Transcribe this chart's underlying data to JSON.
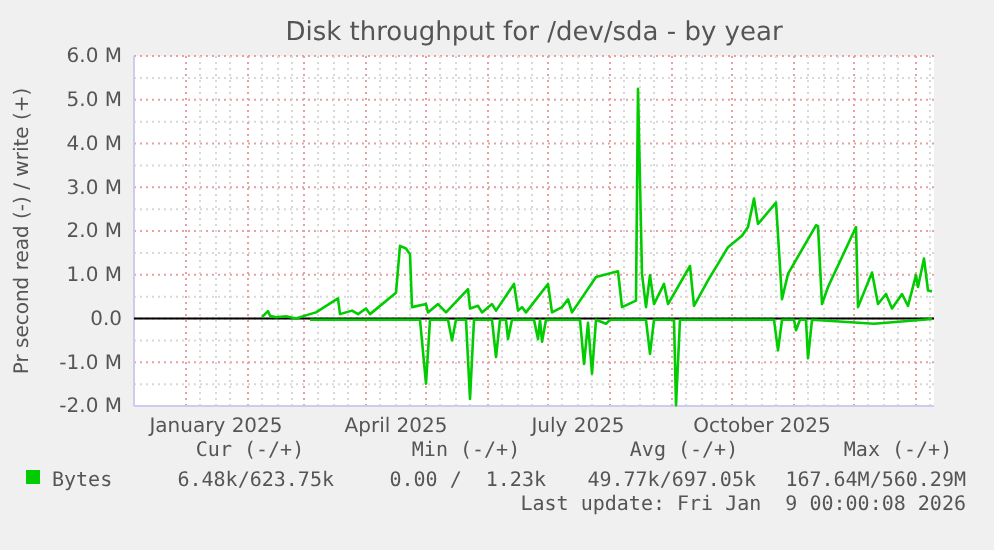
{
  "chart_data": {
    "type": "line",
    "title": "Disk throughput for /dev/sda - by year",
    "ylabel": "Pr second read (-) / write (+)",
    "xlim": [
      "2024-12-06",
      "2026-01-10"
    ],
    "xticks": [
      {
        "value": "2025-01-01",
        "label": null
      },
      {
        "value": "2025-01-16",
        "label": "January 2025"
      },
      {
        "value": "2025-02-01",
        "label": null
      },
      {
        "value": "2025-03-01",
        "label": null
      },
      {
        "value": "2025-04-01",
        "label": null
      },
      {
        "value": "2025-04-16",
        "label": "April 2025"
      },
      {
        "value": "2025-05-01",
        "label": null
      },
      {
        "value": "2025-06-01",
        "label": null
      },
      {
        "value": "2025-07-01",
        "label": null
      },
      {
        "value": "2025-07-16",
        "label": "July 2025"
      },
      {
        "value": "2025-08-01",
        "label": null
      },
      {
        "value": "2025-09-01",
        "label": null
      },
      {
        "value": "2025-10-01",
        "label": null
      },
      {
        "value": "2025-10-16",
        "label": "October 2025"
      },
      {
        "value": "2025-11-01",
        "label": null
      },
      {
        "value": "2025-12-01",
        "label": null
      },
      {
        "value": "2026-01-01",
        "label": null
      }
    ],
    "ylim": [
      -2000000,
      6000000
    ],
    "yticks": [
      {
        "value": -2000000,
        "label": "-2.0 M"
      },
      {
        "value": -1000000,
        "label": "-1.0 M"
      },
      {
        "value": 0,
        "label": "0.0"
      },
      {
        "value": 1000000,
        "label": "1.0 M"
      },
      {
        "value": 2000000,
        "label": "2.0 M"
      },
      {
        "value": 3000000,
        "label": "3.0 M"
      },
      {
        "value": 4000000,
        "label": "4.0 M"
      },
      {
        "value": 5000000,
        "label": "5.0 M"
      },
      {
        "value": 6000000,
        "label": "6.0 M"
      }
    ],
    "grid": true,
    "legend": "bottom",
    "line_style": "solid",
    "marker": "none",
    "ref_lines": [
      {
        "axis": "y",
        "value": 0,
        "color": "#000000"
      }
    ],
    "series": [
      {
        "name": "Bytes",
        "color": "#00cc00",
        "x": [
          "2025-02-08",
          "2025-02-11",
          "2025-02-12",
          "2025-02-15",
          "2025-02-20",
          "2025-02-25",
          "2025-03-04",
          "2025-03-07",
          "2025-03-18",
          "2025-03-19",
          "2025-03-25",
          "2025-03-28",
          "2025-04-01",
          "2025-04-03",
          "2025-04-16",
          "2025-04-18",
          "2025-04-21",
          "2025-04-23",
          "2025-04-24",
          "2025-05-01",
          "2025-05-02",
          "2025-05-07",
          "2025-05-11",
          "2025-05-22",
          "2025-05-23",
          "2025-05-27",
          "2025-05-29",
          "2025-06-03",
          "2025-06-05",
          "2025-06-14",
          "2025-06-16",
          "2025-06-18",
          "2025-06-20",
          "2025-07-01",
          "2025-07-03",
          "2025-07-08",
          "2025-07-11",
          "2025-07-13",
          "2025-07-25",
          "2025-08-05",
          "2025-08-07",
          "2025-08-14",
          "2025-08-15",
          "2025-08-17",
          "2025-08-19",
          "2025-08-21",
          "2025-08-23",
          "2025-08-28",
          "2025-08-30",
          "2025-09-10",
          "2025-09-12",
          "2025-09-19",
          "2025-09-29",
          "2025-10-06",
          "2025-10-09",
          "2025-10-12",
          "2025-10-14",
          "2025-10-23",
          "2025-10-26",
          "2025-10-29",
          "2025-11-12",
          "2025-11-13",
          "2025-11-15",
          "2025-11-18",
          "2025-12-02",
          "2025-12-03",
          "2025-12-10",
          "2025-12-13",
          "2025-12-17",
          "2025-12-20",
          "2025-12-25",
          "2025-12-28",
          "2026-01-01",
          "2026-01-02",
          "2026-01-05",
          "2026-01-07",
          "2026-01-09"
        ],
        "values": [
          30000,
          170000,
          60000,
          30000,
          50000,
          0,
          100000,
          140000,
          460000,
          100000,
          180000,
          100000,
          230000,
          100000,
          590000,
          1660000,
          1600000,
          1470000,
          260000,
          330000,
          140000,
          330000,
          140000,
          670000,
          230000,
          290000,
          140000,
          330000,
          180000,
          790000,
          180000,
          260000,
          140000,
          790000,
          140000,
          260000,
          440000,
          140000,
          950000,
          1080000,
          260000,
          410000,
          5250000,
          1020000,
          260000,
          990000,
          330000,
          790000,
          330000,
          1200000,
          290000,
          870000,
          1630000,
          1890000,
          2090000,
          2740000,
          2160000,
          2650000,
          440000,
          1020000,
          2130000,
          2110000,
          330000,
          720000,
          2090000,
          260000,
          1050000,
          330000,
          560000,
          230000,
          560000,
          290000,
          990000,
          720000,
          1370000,
          640000,
          620000
        ]
      },
      {
        "color": "#00cc00",
        "x": [
          "2025-03-04",
          "2025-04-28",
          "2025-05-01",
          "2025-05-03",
          "2025-05-12",
          "2025-05-14",
          "2025-05-16",
          "2025-05-21",
          "2025-05-23",
          "2025-05-25",
          "2025-06-03",
          "2025-06-05",
          "2025-06-07",
          "2025-06-10",
          "2025-06-11",
          "2025-06-13",
          "2025-06-24",
          "2025-06-26",
          "2025-06-27",
          "2025-06-28",
          "2025-06-30",
          "2025-07-17",
          "2025-07-19",
          "2025-07-21",
          "2025-07-23",
          "2025-07-25",
          "2025-07-30",
          "2025-08-01",
          "2025-08-19",
          "2025-08-21",
          "2025-08-23",
          "2025-09-02",
          "2025-09-03",
          "2025-09-05",
          "2025-10-22",
          "2025-10-24",
          "2025-10-26",
          "2025-11-01",
          "2025-11-02",
          "2025-11-04",
          "2025-11-07",
          "2025-11-08",
          "2025-11-10",
          "2025-12-11",
          "2026-01-09"
        ],
        "values": [
          -30000,
          -30000,
          -1490000,
          -30000,
          -30000,
          -500000,
          -30000,
          -30000,
          -1840000,
          -30000,
          -30000,
          -880000,
          -30000,
          -30000,
          -470000,
          -30000,
          -30000,
          -470000,
          -30000,
          -530000,
          -30000,
          -30000,
          -1040000,
          -100000,
          -1260000,
          -30000,
          -120000,
          -30000,
          -30000,
          -810000,
          -30000,
          -30000,
          -1980000,
          -30000,
          -30000,
          -730000,
          -30000,
          -30000,
          -270000,
          -30000,
          -30000,
          -910000,
          -30000,
          -120000,
          -10000
        ]
      }
    ],
    "annotations": [
      "Cur (-/+)",
      "Min (-/+)",
      "Avg (-/+)",
      "Max (-/+)",
      "6.48k/623.75k",
      "0.00 /  1.23k",
      "49.77k/697.05k",
      "167.64M/560.29M",
      "Last update: Fri Jan  9 00:00:08 2026"
    ]
  }
}
